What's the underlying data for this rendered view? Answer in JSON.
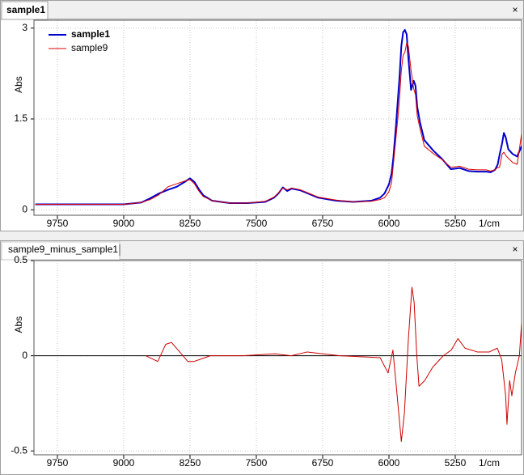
{
  "chart_data": [
    {
      "type": "line",
      "title": "sample1",
      "xlabel": "1/cm",
      "ylabel": "Abs",
      "x": [
        10000,
        9500,
        9000,
        8800,
        8700,
        8600,
        8500,
        8400,
        8300,
        8250,
        8200,
        8150,
        8100,
        8000,
        7800,
        7600,
        7400,
        7300,
        7250,
        7200,
        7150,
        7100,
        7000,
        6900,
        6800,
        6600,
        6400,
        6200,
        6100,
        6050,
        6000,
        5970,
        5950,
        5920,
        5900,
        5880,
        5860,
        5840,
        5820,
        5800,
        5780,
        5750,
        5720,
        5700,
        5680,
        5650,
        5600,
        5500,
        5400,
        5300,
        5200,
        5100,
        5000,
        4900,
        4850,
        4800,
        4770,
        4750,
        4720,
        4700,
        4680,
        4650,
        4600,
        4550,
        4500
      ],
      "series": [
        {
          "name": "sample1",
          "color": "#0000cc",
          "linewidth": 2,
          "values": [
            0.09,
            0.09,
            0.09,
            0.12,
            0.19,
            0.27,
            0.33,
            0.38,
            0.47,
            0.52,
            0.46,
            0.34,
            0.24,
            0.15,
            0.11,
            0.11,
            0.13,
            0.2,
            0.27,
            0.37,
            0.31,
            0.35,
            0.32,
            0.26,
            0.2,
            0.15,
            0.13,
            0.15,
            0.2,
            0.27,
            0.42,
            0.6,
            0.86,
            1.4,
            1.8,
            2.2,
            2.7,
            2.93,
            2.97,
            2.9,
            2.5,
            1.98,
            2.13,
            2.05,
            1.7,
            1.45,
            1.15,
            0.98,
            0.84,
            0.67,
            0.69,
            0.64,
            0.63,
            0.63,
            0.62,
            0.66,
            0.75,
            0.9,
            1.1,
            1.27,
            1.2,
            1.0,
            0.92,
            0.88,
            1.05
          ]
        },
        {
          "name": "sample9",
          "color": "#dd0000",
          "linewidth": 1,
          "values": [
            0.09,
            0.09,
            0.09,
            0.12,
            0.17,
            0.25,
            0.38,
            0.43,
            0.48,
            0.5,
            0.43,
            0.31,
            0.22,
            0.15,
            0.11,
            0.11,
            0.14,
            0.21,
            0.28,
            0.36,
            0.33,
            0.36,
            0.33,
            0.27,
            0.21,
            0.16,
            0.13,
            0.14,
            0.17,
            0.2,
            0.3,
            0.45,
            0.75,
            1.2,
            1.5,
            1.85,
            2.3,
            2.55,
            2.6,
            2.75,
            2.7,
            2.3,
            2.0,
            1.9,
            1.55,
            1.35,
            1.05,
            0.93,
            0.83,
            0.7,
            0.72,
            0.67,
            0.66,
            0.66,
            0.64,
            0.66,
            0.7,
            0.7,
            0.92,
            0.95,
            0.9,
            0.85,
            0.78,
            0.75,
            1.25
          ]
        }
      ],
      "xlim": [
        10015,
        4500
      ],
      "ylim": [
        -0.09,
        3.13
      ],
      "xticks": [
        9750,
        9000,
        8250,
        7500,
        6750,
        6000,
        5250
      ],
      "yticks": [
        0,
        1.5,
        3
      ],
      "grid": true,
      "legend": "upper left"
    },
    {
      "type": "line",
      "title": "sample9_minus_sample1",
      "xlabel": "1/cm",
      "ylabel": "Abs",
      "x": [
        8750,
        8615,
        8525,
        8460,
        8385,
        8275,
        8205,
        8020,
        7655,
        7290,
        7105,
        6925,
        6555,
        6100,
        6010,
        5955,
        5915,
        5860,
        5825,
        5780,
        5740,
        5715,
        5685,
        5660,
        5595,
        5505,
        5385,
        5295,
        5220,
        5140,
        5000,
        4865,
        4775,
        4725,
        4680,
        4665,
        4635,
        4610,
        4570,
        4525,
        4500
      ],
      "series": [
        {
          "color": "#cc0000",
          "linewidth": 1,
          "values": [
            0,
            -0.03,
            0.06,
            0.07,
            0.03,
            -0.03,
            -0.03,
            0,
            0,
            0.01,
            0,
            0.02,
            0,
            -0.01,
            -0.09,
            0.03,
            -0.17,
            -0.45,
            -0.3,
            0.09,
            0.36,
            0.28,
            0,
            -0.16,
            -0.13,
            -0.06,
            0,
            0.03,
            0.09,
            0.04,
            0.02,
            0.02,
            0.04,
            -0.02,
            -0.21,
            -0.36,
            -0.13,
            -0.21,
            -0.09,
            0,
            0.17
          ]
        }
      ],
      "xlim": [
        10015,
        4500
      ],
      "ylim": [
        -0.52,
        0.5
      ],
      "xticks": [
        9750,
        9000,
        8250,
        7500,
        6750,
        6000,
        5250
      ],
      "yticks": [
        -0.5,
        0,
        0.5
      ],
      "grid": true,
      "zero_line": true
    }
  ]
}
